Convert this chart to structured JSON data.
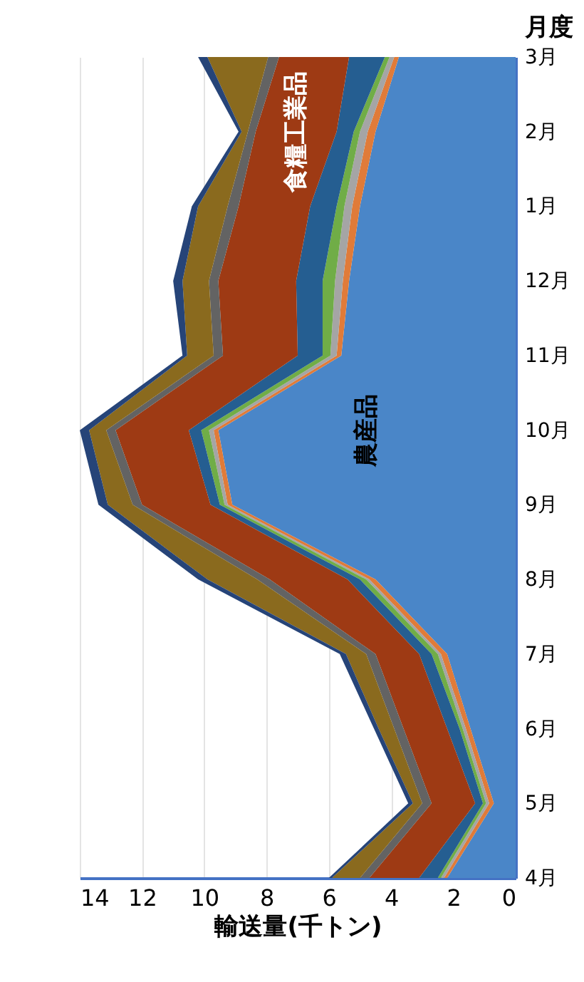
{
  "chart_data": {
    "type": "area",
    "stacked": true,
    "orientation": "horizontal",
    "xlabel": "輸送量(千トン)",
    "ylabel": "月度",
    "categories": [
      "3月",
      "2月",
      "1月",
      "12月",
      "11月",
      "10月",
      "9月",
      "8月",
      "7月",
      "6月",
      "5月",
      "4月"
    ],
    "xlim": [
      14,
      0
    ],
    "xticks": [
      14,
      12,
      10,
      8,
      6,
      4,
      2,
      0
    ],
    "grid": "x",
    "legend": false,
    "series": [
      {
        "name": "農産品",
        "color": "#4a86c8",
        "values": [
          3.75,
          4.5,
          5.0,
          5.35,
          5.6,
          9.55,
          9.1,
          4.5,
          2.2,
          1.45,
          0.7,
          2.2
        ]
      },
      {
        "color": "#e07b39",
        "values": [
          0.15,
          0.25,
          0.25,
          0.2,
          0.15,
          0.15,
          0.15,
          0.2,
          0.2,
          0.15,
          0.15,
          0.1
        ]
      },
      {
        "color": "#a5a5a5",
        "values": [
          0.15,
          0.25,
          0.25,
          0.25,
          0.2,
          0.15,
          0.1,
          0.1,
          0.1,
          0.1,
          0.1,
          0.1
        ]
      },
      {
        "color": "#70ad47",
        "values": [
          0.15,
          0.2,
          0.25,
          0.4,
          0.25,
          0.25,
          0.15,
          0.2,
          0.2,
          0.1,
          0.1,
          0.1
        ]
      },
      {
        "color": "#255e91",
        "values": [
          1.15,
          0.55,
          0.85,
          0.85,
          0.8,
          0.4,
          0.3,
          0.4,
          0.4,
          0.4,
          0.25,
          0.6
        ]
      },
      {
        "name": "食糧工業品",
        "color": "#9e3a14",
        "values": [
          2.25,
          2.6,
          2.3,
          2.5,
          2.4,
          2.35,
          2.2,
          2.5,
          1.4,
          1.4,
          1.4,
          1.6
        ]
      },
      {
        "color": "#636363",
        "values": [
          0.35,
          0.25,
          0.35,
          0.3,
          0.3,
          0.3,
          0.3,
          0.4,
          0.3,
          0.3,
          0.3,
          0.3
        ]
      },
      {
        "color": "#8a6a1e",
        "values": [
          1.95,
          0.2,
          0.95,
          0.85,
          0.85,
          0.55,
          0.8,
          1.6,
          0.65,
          0.5,
          0.3,
          0.9
        ]
      },
      {
        "color": "#264478",
        "values": [
          0.3,
          0.1,
          0.2,
          0.3,
          0.15,
          0.3,
          0.3,
          0.3,
          0.2,
          0.15,
          0.15,
          0.1
        ]
      }
    ]
  }
}
